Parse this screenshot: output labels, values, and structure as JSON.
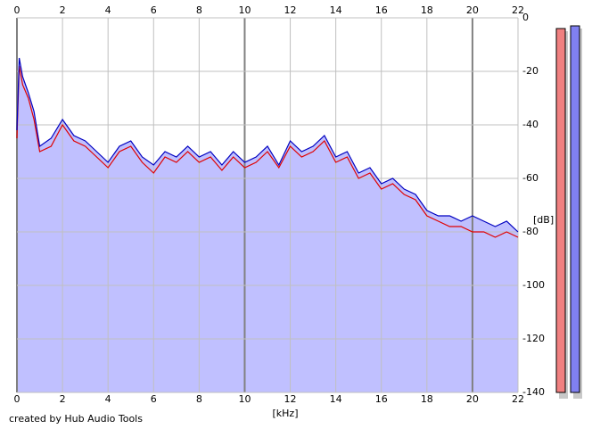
{
  "chart_data": {
    "type": "line",
    "x_label": "[kHz]",
    "y_label": "[dB]",
    "footer": "created by Hub Audio Tools",
    "x": [
      0,
      0.1,
      0.25,
      0.5,
      0.75,
      1,
      1.5,
      2,
      2.5,
      3,
      3.5,
      4,
      4.5,
      5,
      5.5,
      6,
      6.5,
      7,
      7.5,
      8,
      8.5,
      9,
      9.5,
      10,
      10.5,
      11,
      11.5,
      12,
      12.5,
      13,
      13.5,
      14,
      14.5,
      15,
      15.5,
      16,
      16.5,
      17,
      17.5,
      18,
      18.5,
      19,
      19.5,
      20,
      20.5,
      21,
      21.5,
      22
    ],
    "series": [
      {
        "color": "#e00000",
        "values": [
          -45,
          -18,
          -25,
          -30,
          -38,
          -50,
          -48,
          -40,
          -46,
          -48,
          -52,
          -56,
          -50,
          -48,
          -54,
          -58,
          -52,
          -54,
          -50,
          -54,
          -52,
          -57,
          -52,
          -56,
          -54,
          -50,
          -56,
          -48,
          -52,
          -50,
          -46,
          -54,
          -52,
          -60,
          -58,
          -64,
          -62,
          -66,
          -68,
          -74,
          -76,
          -78,
          -78,
          -80,
          -80,
          -82,
          -80,
          -82
        ]
      },
      {
        "color": "#0000c0",
        "fill": "#c0c0ff",
        "values": [
          -42,
          -15,
          -22,
          -28,
          -35,
          -48,
          -45,
          -38,
          -44,
          -46,
          -50,
          -54,
          -48,
          -46,
          -52,
          -55,
          -50,
          -52,
          -48,
          -52,
          -50,
          -55,
          -50,
          -54,
          -52,
          -48,
          -55,
          -46,
          -50,
          -48,
          -44,
          -52,
          -50,
          -58,
          -56,
          -62,
          -60,
          -64,
          -66,
          -72,
          -74,
          -74,
          -76,
          -74,
          -76,
          -78,
          -76,
          -80
        ]
      }
    ],
    "xlim": [
      0,
      22
    ],
    "xticks": [
      0,
      2,
      4,
      6,
      8,
      10,
      12,
      14,
      16,
      18,
      20,
      22
    ],
    "ylim": [
      -140,
      0
    ],
    "yticks": [
      0,
      -20,
      -40,
      -60,
      -80,
      -100,
      -120,
      -140
    ],
    "grid": true,
    "levels": [
      {
        "color": "#f08080",
        "value": -4
      },
      {
        "color": "#8080f0",
        "value": -3
      }
    ]
  }
}
